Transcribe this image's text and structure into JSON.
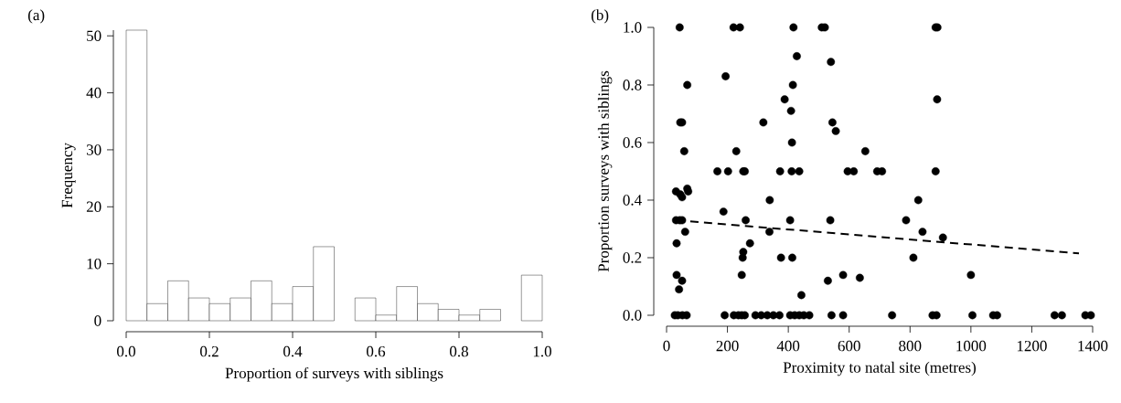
{
  "chart_data": [
    {
      "type": "histogram",
      "annotations": [
        "(a)"
      ],
      "xlabel": "Proportion of surveys with siblings",
      "ylabel": "Frequency",
      "bins": [
        0,
        0.05,
        0.1,
        0.15,
        0.2,
        0.25,
        0.3,
        0.35,
        0.4,
        0.45,
        0.5,
        0.55,
        0.6,
        0.65,
        0.7,
        0.75,
        0.8,
        0.85,
        0.9,
        0.95,
        1.0
      ],
      "values": [
        51,
        3,
        7,
        4,
        3,
        4,
        7,
        3,
        6,
        13,
        0,
        4,
        1,
        6,
        3,
        2,
        1,
        2,
        0,
        8
      ],
      "color": "#ffffff",
      "xlim": [
        0,
        1
      ],
      "xticks": [
        {
          "value": 0,
          "label": "0.0"
        },
        0.2,
        0.4,
        0.6,
        0.8,
        {
          "value": 1,
          "label": "1.0"
        }
      ],
      "ylim": [
        0,
        51
      ],
      "yticks": [
        0,
        10,
        20,
        30,
        40,
        50
      ]
    },
    {
      "type": "scatter",
      "annotations": [
        "(b)"
      ],
      "xlabel": "Proximity to natal site (metres)",
      "ylabel": "Proportion surveys with siblings",
      "xlim": [
        0,
        1400
      ],
      "xticks": [
        0,
        200,
        400,
        600,
        800,
        1000,
        1200,
        1400
      ],
      "ylim": [
        0,
        1
      ],
      "yticks": [
        {
          "value": 0,
          "label": "0.0"
        },
        0.2,
        0.4,
        0.6,
        0.8,
        {
          "value": 1,
          "label": "1.0"
        }
      ],
      "series": [
        {
          "type": "scatter",
          "color": "#000000",
          "marker": "circle",
          "x": [
            43,
            220,
            241,
            417,
            510,
            520,
            884,
            890,
            68,
            194,
            428,
            415,
            388,
            409,
            540,
            889,
            45,
            51,
            318,
            545,
            556,
            412,
            58,
            229,
            653,
            167,
            202,
            252,
            257,
            373,
            411,
            436,
            595,
            615,
            692,
            708,
            884,
            827,
            787,
            841,
            908,
            811,
            580,
            635,
            1000,
            31,
            45,
            51,
            68,
            71,
            31,
            43,
            51,
            260,
            406,
            538,
            187,
            61,
            339,
            338,
            33,
            274,
            252,
            250,
            376,
            413,
            33,
            247,
            51,
            530,
            41,
            443,
            27,
            37,
            52,
            66,
            191,
            221,
            236,
            247,
            257,
            292,
            311,
            331,
            351,
            371,
            406,
            421,
            436,
            451,
            469,
            542,
            580,
            741,
            874,
            887,
            1005,
            1073,
            1086,
            1275,
            1299,
            1376,
            1394
          ],
          "values": [
            1.0,
            1.0,
            1.0,
            1.0,
            1.0,
            1.0,
            1.0,
            1.0,
            0.8,
            0.83,
            0.9,
            0.8,
            0.75,
            0.71,
            0.88,
            0.75,
            0.67,
            0.67,
            0.67,
            0.67,
            0.64,
            0.6,
            0.57,
            0.57,
            0.57,
            0.5,
            0.5,
            0.5,
            0.5,
            0.5,
            0.5,
            0.5,
            0.5,
            0.5,
            0.5,
            0.5,
            0.5,
            0.4,
            0.33,
            0.29,
            0.27,
            0.2,
            0.14,
            0.13,
            0.14,
            0.43,
            0.42,
            0.41,
            0.44,
            0.43,
            0.33,
            0.33,
            0.33,
            0.33,
            0.33,
            0.33,
            0.36,
            0.29,
            0.4,
            0.29,
            0.25,
            0.25,
            0.22,
            0.2,
            0.2,
            0.2,
            0.14,
            0.14,
            0.12,
            0.12,
            0.09,
            0.07,
            0,
            0,
            0,
            0,
            0,
            0,
            0,
            0,
            0,
            0,
            0,
            0,
            0,
            0,
            0,
            0,
            0,
            0,
            0,
            0,
            0,
            0,
            0,
            0,
            0,
            0,
            0,
            0,
            0,
            0,
            0
          ]
        },
        {
          "type": "line",
          "color": "#000000",
          "line_style": "dashed",
          "marker": "none",
          "x": [
            33,
            1355
          ],
          "values": [
            0.33,
            0.215
          ]
        }
      ]
    }
  ]
}
